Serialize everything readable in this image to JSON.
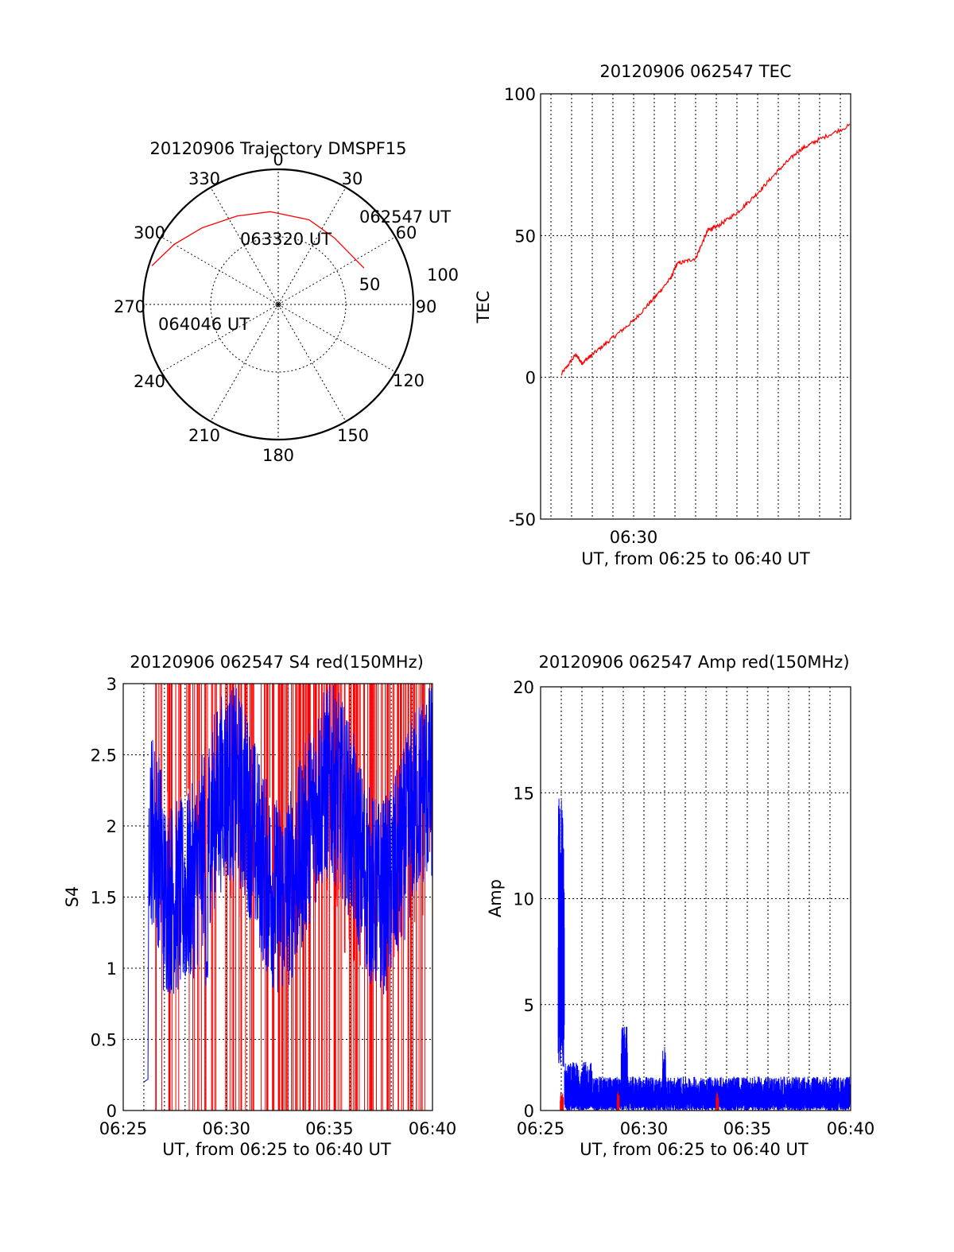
{
  "colors": {
    "red": "#ff0000",
    "blue": "#0000ff",
    "black": "#000000"
  },
  "chart_data": [
    {
      "type": "polar",
      "title": "20120906 Trajectory DMSPF15",
      "azimuth_labels": [
        "0",
        "30",
        "60",
        "90",
        "120",
        "150",
        "180",
        "210",
        "240",
        "270",
        "300",
        "330"
      ],
      "radial_labels": [
        "50",
        "100"
      ],
      "track_start_label": "062547 UT",
      "track_mid_label": "063320 UT",
      "track_end_label": "064046 UT",
      "series": [
        {
          "color": "red",
          "points": [
            [
              67,
              62
            ],
            [
              40,
              58
            ],
            [
              20,
              60
            ],
            [
              -5,
              62
            ],
            [
              -25,
              65
            ],
            [
              -45,
              72
            ],
            [
              -60,
              80
            ],
            [
              -73,
              88
            ]
          ]
        }
      ]
    },
    {
      "type": "line",
      "title": "20120906 062547 TEC",
      "xlabel": "UT, from 06:25 to 06:40 UT",
      "ylabel": "TEC",
      "ylim": [
        -50,
        100
      ],
      "yticks": [
        -50,
        0,
        50,
        100
      ],
      "x_tick_labels": [
        "06:30"
      ],
      "xlim_min": [
        25.5,
        40.5
      ],
      "grid": true,
      "series": [
        {
          "color": "red",
          "x": [
            26.5,
            27.2,
            27.5,
            28.0,
            29.0,
            30.0,
            31.0,
            31.8,
            32.1,
            33.0,
            33.6,
            34.0,
            35.0,
            36.0,
            37.0,
            38.0,
            39.0,
            40.5
          ],
          "y": [
            1,
            8,
            5,
            8,
            14,
            20,
            28,
            35,
            40,
            42,
            52,
            53,
            58,
            65,
            73,
            80,
            84,
            89
          ]
        }
      ]
    },
    {
      "type": "line",
      "title": "20120906 062547 S4 red(150MHz)",
      "xlabel": "UT, from 06:25 to 06:40 UT",
      "ylabel": "S4",
      "ylim": [
        0,
        3
      ],
      "yticks": [
        "0",
        "0.5",
        "1",
        "1.5",
        "2",
        "2.5",
        "3"
      ],
      "x_tick_labels": [
        "06:25",
        "06:30",
        "06:35",
        "06:40"
      ],
      "xlim_min": [
        25,
        40
      ],
      "grid": true,
      "series": [
        {
          "color": "blue",
          "name": "",
          "note": "noisy S4 ~1.2-3 from 06:26"
        },
        {
          "color": "red",
          "name": "",
          "note": "spiky 0-3"
        }
      ]
    },
    {
      "type": "line",
      "title": "20120906 062547 Amp red(150MHz)",
      "xlabel": "UT, from 06:25 to 06:40 UT",
      "ylabel": "Amp",
      "ylim": [
        0,
        20
      ],
      "yticks": [
        "0",
        "5",
        "10",
        "15",
        "20"
      ],
      "x_tick_labels": [
        "06:25",
        "06:30",
        "06:35",
        "06:40"
      ],
      "xlim_min": [
        25,
        40
      ],
      "grid": true,
      "series": [
        {
          "color": "blue",
          "peaks": [
            [
              26.0,
              15
            ],
            [
              29.0,
              4
            ],
            [
              31.0,
              3
            ]
          ],
          "baseline": 1
        },
        {
          "color": "red",
          "baseline": 0.3
        }
      ]
    }
  ]
}
